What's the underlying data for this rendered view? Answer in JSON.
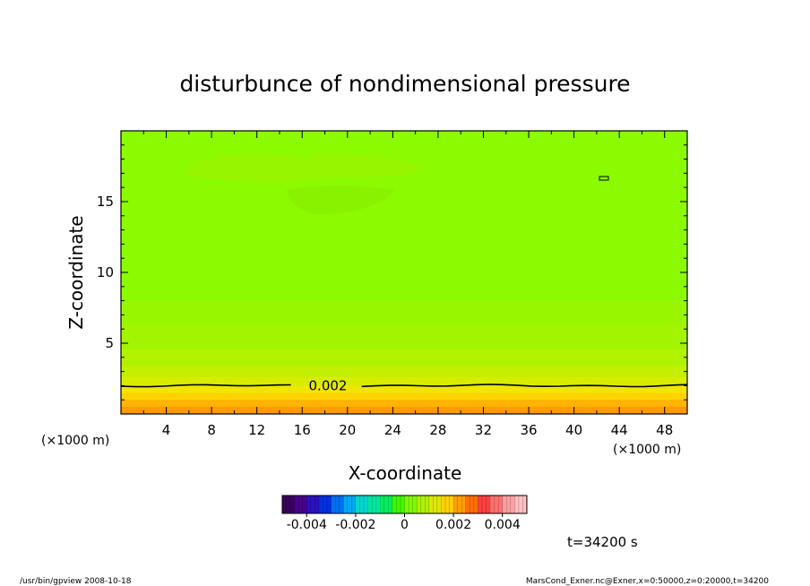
{
  "chart_data": {
    "type": "contour",
    "title": "disturbunce of nondimensional pressure",
    "xlabel": "X-coordinate",
    "ylabel": "Z-coordinate",
    "x_unit": "(×1000 m)",
    "y_unit": "(×1000 m)",
    "xlim": [
      0,
      50
    ],
    "ylim": [
      0,
      20
    ],
    "x_ticks": [
      4,
      8,
      12,
      16,
      20,
      24,
      28,
      32,
      36,
      40,
      44,
      48
    ],
    "y_ticks": [
      5,
      10,
      15
    ],
    "contour_lines": [
      {
        "label": "0.002",
        "z_level_km": 2.0
      }
    ],
    "fill_bands": [
      {
        "z_top": 0.5,
        "value": 0.0045,
        "color": "#ff9a00"
      },
      {
        "z_top": 1.0,
        "value": 0.0035,
        "color": "#ffb400"
      },
      {
        "z_top": 1.5,
        "value": 0.0028,
        "color": "#ffd400"
      },
      {
        "z_top": 2.0,
        "value": 0.0022,
        "color": "#f0e600"
      },
      {
        "z_top": 2.6,
        "value": 0.0018,
        "color": "#d8ec00"
      },
      {
        "z_top": 3.4,
        "value": 0.0014,
        "color": "#c4f000"
      },
      {
        "z_top": 4.6,
        "value": 0.001,
        "color": "#b0f200"
      },
      {
        "z_top": 6.4,
        "value": 0.0007,
        "color": "#a2f400"
      },
      {
        "z_top": 8.0,
        "value": 0.0004,
        "color": "#98f600"
      },
      {
        "z_top": 20.0,
        "value": 0.0002,
        "color": "#8cfa00"
      }
    ],
    "colorbar": {
      "min": -0.005,
      "max": 0.005,
      "tick_labels": [
        "-0.004",
        "-0.002",
        "0",
        "0.002",
        "0.004"
      ],
      "tick_values": [
        -0.004,
        -0.002,
        0,
        0.002,
        0.004
      ],
      "colors": [
        "#3a0060",
        "#4a0090",
        "#2a10c0",
        "#0030e0",
        "#0070f0",
        "#00a8f0",
        "#00d8d0",
        "#00e8a0",
        "#00f060",
        "#40f800",
        "#80fa00",
        "#b0f200",
        "#e0e800",
        "#ffd000",
        "#ffa000",
        "#ff7000",
        "#ff4040",
        "#ff7070",
        "#ffa0a0",
        "#ffc0c0"
      ]
    },
    "time_label": "t=34200 s"
  },
  "footer": {
    "left": "/usr/bin/gpview  2008-10-18",
    "right": "MarsCond_Exner.nc@Exner,x=0:50000,z=0:20000,t=34200"
  }
}
